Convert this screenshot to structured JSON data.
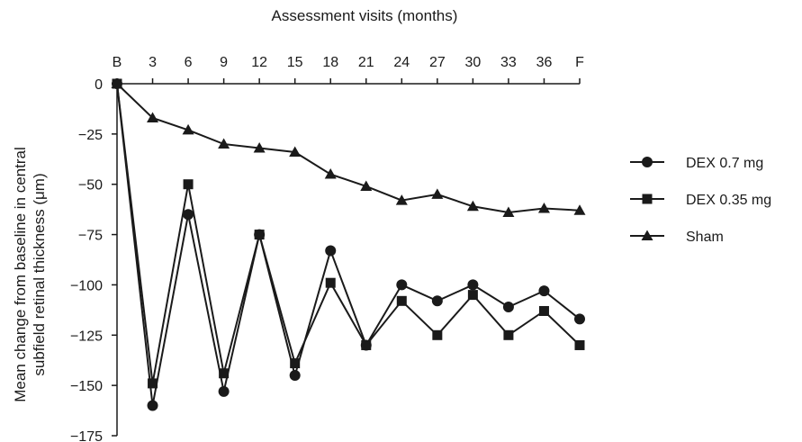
{
  "chart_data": {
    "type": "line",
    "title": "",
    "xlabel": "Assessment visits (months)",
    "ylabel": [
      "Mean change from baseline in central",
      "subfield retinal thickness (μm)"
    ],
    "x_axis_position": "top",
    "categories": [
      "B",
      "3",
      "6",
      "9",
      "12",
      "15",
      "18",
      "21",
      "24",
      "27",
      "30",
      "33",
      "36",
      "F"
    ],
    "yticks": [
      0,
      -25,
      -50,
      -75,
      -100,
      -125,
      -150,
      -175
    ],
    "ylim": [
      -175,
      0
    ],
    "grid": false,
    "legend_position": "right",
    "series": [
      {
        "name": "DEX 0.7 mg",
        "marker": "circle",
        "values": [
          0,
          -160,
          -65,
          -153,
          -75,
          -145,
          -83,
          -130,
          -100,
          -108,
          -100,
          -111,
          -103,
          -117
        ]
      },
      {
        "name": "DEX 0.35 mg",
        "marker": "square",
        "values": [
          0,
          -149,
          -50,
          -144,
          -75,
          -139,
          -99,
          -130,
          -108,
          -125,
          -105,
          -125,
          -113,
          -130
        ]
      },
      {
        "name": "Sham",
        "marker": "triangle",
        "values": [
          0,
          -17,
          -23,
          -30,
          -32,
          -34,
          -45,
          -51,
          -58,
          -55,
          -61,
          -64,
          -62,
          -63
        ]
      }
    ],
    "colors": {
      "line": "#1a1a1a",
      "marker": "#1a1a1a"
    }
  }
}
